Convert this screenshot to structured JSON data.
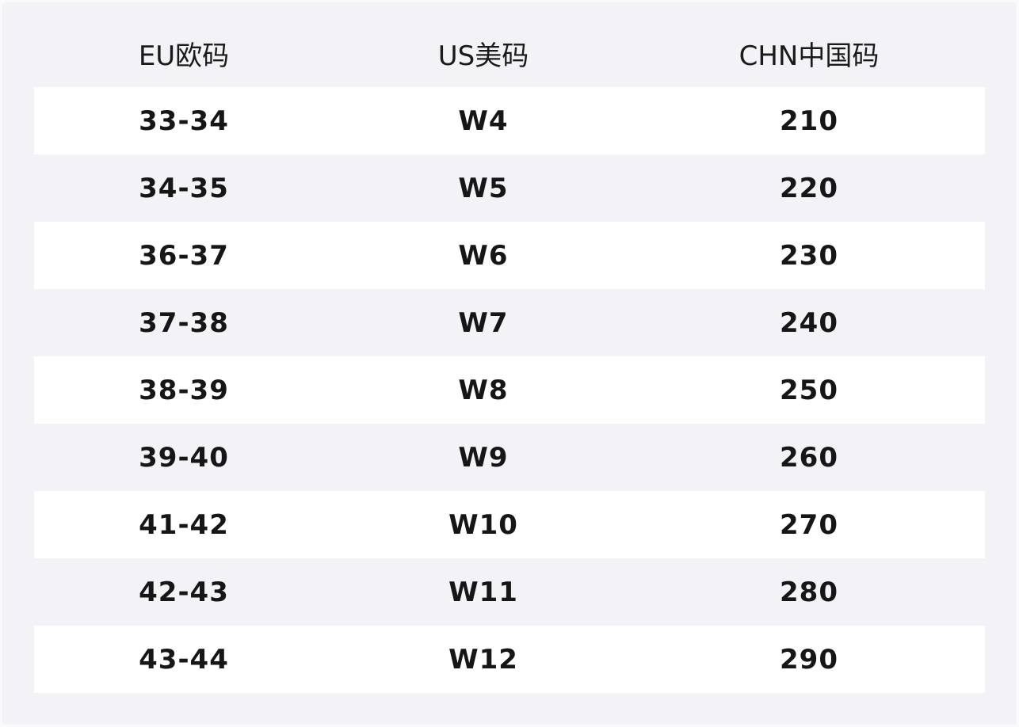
{
  "table": {
    "header": [
      "EU欧码",
      "US美码",
      "CHN中国码"
    ],
    "rows": [
      [
        "33-34",
        "W4",
        "210"
      ],
      [
        "34-35",
        "W5",
        "220"
      ],
      [
        "36-37",
        "W6",
        "230"
      ],
      [
        "37-38",
        "W7",
        "240"
      ],
      [
        "38-39",
        "W8",
        "250"
      ],
      [
        "39-40",
        "W9",
        "260"
      ],
      [
        "41-42",
        "W10",
        "270"
      ],
      [
        "42-43",
        "W11",
        "280"
      ],
      [
        "43-44",
        "W12",
        "290"
      ]
    ]
  }
}
